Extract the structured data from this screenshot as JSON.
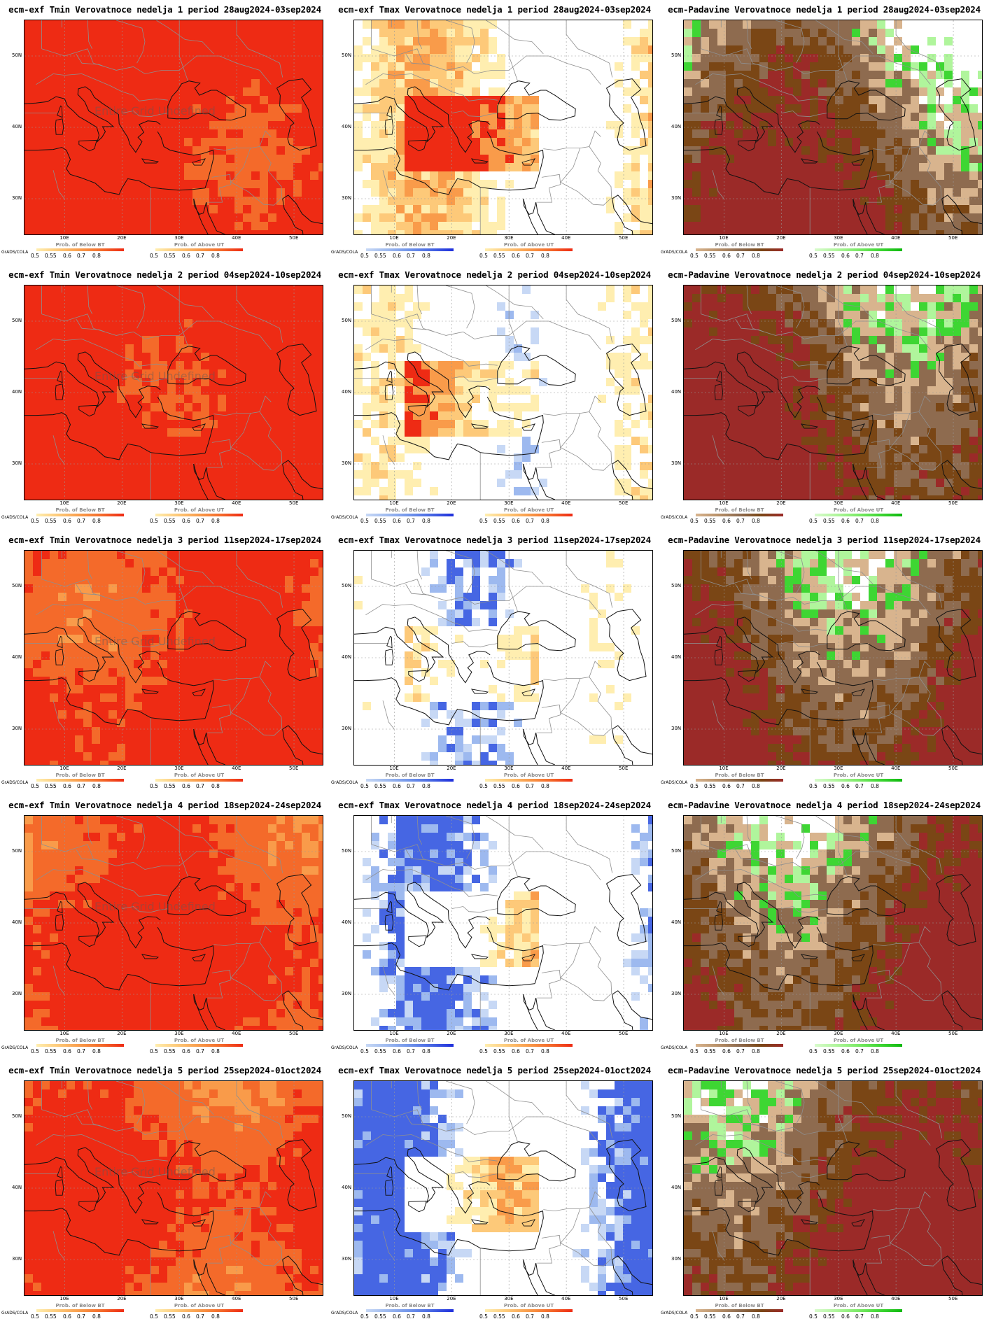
{
  "meta_label": "GrADS/COLA",
  "map": {
    "lat_labels": [
      "50N",
      "40N",
      "30N"
    ],
    "lon_labels": [
      "10E",
      "20E",
      "30E",
      "40E",
      "50E"
    ]
  },
  "undefined_note": "Entire Grid Undefined",
  "legends": {
    "temp": {
      "below_title": "Prob. of Below BT",
      "above_title": "Prob. of Above UT",
      "ticks": [
        "0.5",
        "0.55",
        "0.6",
        "0.7",
        "0.8"
      ],
      "below_colors": [
        "#c7d8f5",
        "#9db9ef",
        "#6f93ea",
        "#4666e3",
        "#1f2fdc"
      ],
      "above_colors": [
        "#ffeeb0",
        "#fdc979",
        "#f99b4a",
        "#f46a2a",
        "#ee2b14"
      ]
    },
    "precip": {
      "below_title": "Prob. of Below BT",
      "above_title": "Prob. of Above UT",
      "ticks": [
        "0.5",
        "0.55",
        "0.6",
        "0.7",
        "0.8"
      ],
      "below_colors": [
        "#d8b48e",
        "#b89169",
        "#8e6b4f",
        "#7a4615",
        "#9b2a28"
      ],
      "above_colors": [
        "#d9fbcd",
        "#b0f59c",
        "#7bea66",
        "#3ed633",
        "#0fb80f"
      ]
    }
  },
  "rows": [
    {
      "panels": [
        {
          "title": "ecm-exf Tmin Verovatnoce nedelja 1 period 28aug2024-03sep2024",
          "kind": "tmin",
          "level": 0.92,
          "show_undefined": true
        },
        {
          "title": "ecm-exf Tmax Verovatnoce nedelja 1 period 28aug2024-03sep2024",
          "kind": "tmax",
          "level": 0.85
        },
        {
          "title": "ecm-Padavine Verovatnoce nedelja 1 period 28aug2024-03sep2024",
          "kind": "precip",
          "level": 0.9
        }
      ]
    },
    {
      "panels": [
        {
          "title": "ecm-exf Tmin Verovatnoce nedelja 2 period 04sep2024-10sep2024",
          "kind": "tmin",
          "level": 0.98,
          "show_undefined": true
        },
        {
          "title": "ecm-exf Tmax Verovatnoce nedelja 2 period 04sep2024-10sep2024",
          "kind": "tmax",
          "level": 0.6
        },
        {
          "title": "ecm-Padavine Verovatnoce nedelja 2 period 04sep2024-10sep2024",
          "kind": "precip",
          "level": 0.75
        }
      ]
    },
    {
      "panels": [
        {
          "title": "ecm-exf Tmin Verovatnoce nedelja 3 period 11sep2024-17sep2024",
          "kind": "tmin",
          "level": 0.8,
          "show_undefined": true
        },
        {
          "title": "ecm-exf Tmax Verovatnoce nedelja 3 period 11sep2024-17sep2024",
          "kind": "tmax",
          "level": 0.45
        },
        {
          "title": "ecm-Padavine Verovatnoce nedelja 3 period 11sep2024-17sep2024",
          "kind": "precip",
          "level": 0.8
        }
      ]
    },
    {
      "panels": [
        {
          "title": "ecm-exf Tmin Verovatnoce nedelja 4 period 18sep2024-24sep2024",
          "kind": "tmin",
          "level": 0.78,
          "show_undefined": true
        },
        {
          "title": "ecm-exf Tmax Verovatnoce nedelja 4 period 18sep2024-24sep2024",
          "kind": "tmax",
          "level": 0.3
        },
        {
          "title": "ecm-Padavine Verovatnoce nedelja 4 period 18sep2024-24sep2024",
          "kind": "precip",
          "level": 0.82
        }
      ]
    },
    {
      "panels": [
        {
          "title": "ecm-exf Tmin Verovatnoce nedelja 5 period 25sep2024-01oct2024",
          "kind": "tmin",
          "level": 0.72,
          "show_undefined": true
        },
        {
          "title": "ecm-exf Tmax Verovatnoce nedelja 5 period 25sep2024-01oct2024",
          "kind": "tmax",
          "level": 0.25
        },
        {
          "title": "ecm-Padavine Verovatnoce nedelja 5 period 25sep2024-01oct2024",
          "kind": "precip",
          "level": 0.78
        }
      ]
    }
  ]
}
